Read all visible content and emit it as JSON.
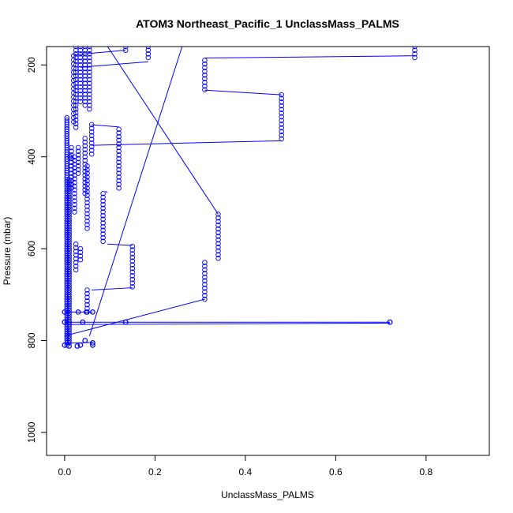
{
  "chart_data": {
    "type": "scatter",
    "title": "ATOM3 Northeast_Pacific_1 UnclassMass_PALMS",
    "xlabel": "UnclassMass_PALMS",
    "ylabel": "Pressure (mbar)",
    "xlim": [
      -0.04,
      0.94
    ],
    "ylim": [
      1050,
      160
    ],
    "y_reversed": true,
    "grid": false,
    "legend": "none",
    "x_ticks": [
      0.0,
      0.2,
      0.4,
      0.6,
      0.8
    ],
    "x_tick_labels": [
      "0.0",
      "0.2",
      "0.4",
      "0.6",
      "0.8"
    ],
    "y_ticks": [
      200,
      400,
      600,
      800,
      1000
    ],
    "y_tick_labels": [
      "200",
      "400",
      "600",
      "800",
      "1000"
    ],
    "marker": "open-circle",
    "series": [
      {
        "color": "#0000ff",
        "columns": [
          {
            "x": 0.005,
            "y0": 315,
            "y1": 810,
            "step": 5
          },
          {
            "x": 0.01,
            "y0": 450,
            "y1": 805,
            "step": 5
          },
          {
            "x": 0.015,
            "y0": 380,
            "y1": 470,
            "step": 8
          },
          {
            "x": 0.02,
            "y0": 180,
            "y1": 330,
            "step": 9
          },
          {
            "x": 0.022,
            "y0": 400,
            "y1": 520,
            "step": 8
          },
          {
            "x": 0.025,
            "y0": 160,
            "y1": 340,
            "step": 8
          },
          {
            "x": 0.025,
            "y0": 590,
            "y1": 650,
            "step": 8
          },
          {
            "x": 0.03,
            "y0": 380,
            "y1": 440,
            "step": 8
          },
          {
            "x": 0.035,
            "y0": 160,
            "y1": 280,
            "step": 8
          },
          {
            "x": 0.035,
            "y0": 600,
            "y1": 630,
            "step": 8
          },
          {
            "x": 0.045,
            "y0": 160,
            "y1": 290,
            "step": 8
          },
          {
            "x": 0.045,
            "y0": 360,
            "y1": 480,
            "step": 8
          },
          {
            "x": 0.05,
            "y0": 420,
            "y1": 560,
            "step": 8
          },
          {
            "x": 0.05,
            "y0": 690,
            "y1": 740,
            "step": 8
          },
          {
            "x": 0.055,
            "y0": 160,
            "y1": 300,
            "step": 8
          },
          {
            "x": 0.06,
            "y0": 330,
            "y1": 400,
            "step": 8
          },
          {
            "x": 0.085,
            "y0": 480,
            "y1": 590,
            "step": 8
          },
          {
            "x": 0.12,
            "y0": 340,
            "y1": 470,
            "step": 8
          },
          {
            "x": 0.135,
            "y0": 160,
            "y1": 170,
            "step": 8
          },
          {
            "x": 0.15,
            "y0": 595,
            "y1": 685,
            "step": 8
          },
          {
            "x": 0.185,
            "y0": 160,
            "y1": 190,
            "step": 8
          },
          {
            "x": 0.31,
            "y0": 190,
            "y1": 255,
            "step": 8
          },
          {
            "x": 0.31,
            "y0": 630,
            "y1": 710,
            "step": 8
          },
          {
            "x": 0.34,
            "y0": 525,
            "y1": 625,
            "step": 8
          },
          {
            "x": 0.48,
            "y0": 265,
            "y1": 365,
            "step": 8
          },
          {
            "x": 0.775,
            "y0": 160,
            "y1": 185,
            "step": 8
          }
        ],
        "points": [
          {
            "x": 0.0,
            "y": 810
          },
          {
            "x": 0.01,
            "y": 812
          },
          {
            "x": 0.028,
            "y": 812
          },
          {
            "x": 0.035,
            "y": 810
          },
          {
            "x": 0.045,
            "y": 800
          },
          {
            "x": 0.062,
            "y": 805
          },
          {
            "x": 0.062,
            "y": 810
          },
          {
            "x": 0.0,
            "y": 738
          },
          {
            "x": 0.03,
            "y": 738
          },
          {
            "x": 0.048,
            "y": 738
          },
          {
            "x": 0.062,
            "y": 738
          },
          {
            "x": 0.0,
            "y": 760
          },
          {
            "x": 0.04,
            "y": 760
          },
          {
            "x": 0.135,
            "y": 760
          },
          {
            "x": 0.72,
            "y": 760
          },
          {
            "x": 0.012,
            "y": 400
          }
        ],
        "connectors": [
          [
            [
              0.02,
              178
            ],
            [
              0.135,
              168
            ]
          ],
          [
            [
              0.035,
              205
            ],
            [
              0.185,
              193
            ]
          ],
          [
            [
              0.095,
              160
            ],
            [
              0.34,
              525
            ]
          ],
          [
            [
              0.055,
              790
            ],
            [
              0.26,
              160
            ]
          ],
          [
            [
              0.065,
              160
            ],
            [
              0.085,
              160
            ]
          ],
          [
            [
              0.31,
              185
            ],
            [
              0.775,
              180
            ]
          ],
          [
            [
              0.31,
              255
            ],
            [
              0.48,
              265
            ]
          ],
          [
            [
              0.06,
              375
            ],
            [
              0.48,
              365
            ]
          ],
          [
            [
              0.06,
              330
            ],
            [
              0.12,
              335
            ]
          ],
          [
            [
              0.09,
              475
            ],
            [
              0.095,
              478
            ]
          ],
          [
            [
              0.095,
              590
            ],
            [
              0.15,
              593
            ]
          ],
          [
            [
              0.06,
              690
            ],
            [
              0.15,
              685
            ]
          ],
          [
            [
              0.0,
              790
            ],
            [
              0.31,
              710
            ]
          ],
          [
            [
              0.0,
              738
            ],
            [
              0.062,
              738
            ]
          ],
          [
            [
              0.0,
              760
            ],
            [
              0.72,
              760
            ]
          ],
          [
            [
              0.0,
              806
            ],
            [
              0.062,
              804
            ]
          ],
          [
            [
              0.01,
              765
            ],
            [
              0.72,
              762
            ]
          ]
        ]
      }
    ]
  }
}
